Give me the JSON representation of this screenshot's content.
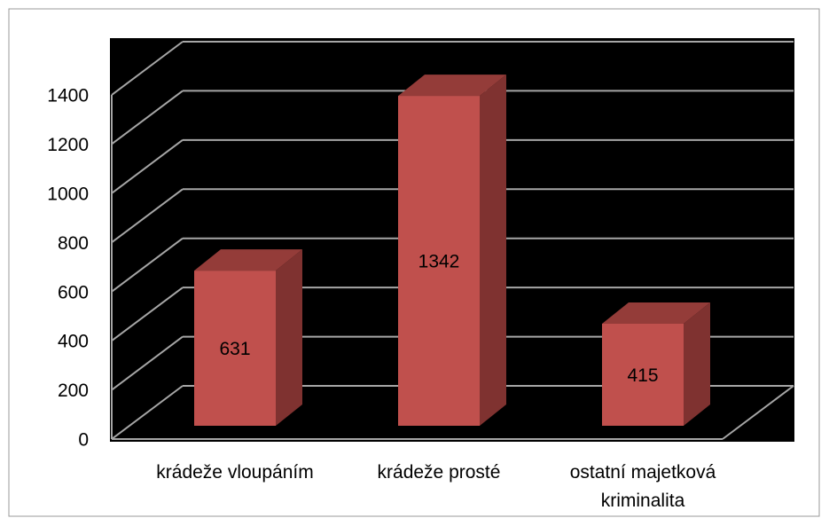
{
  "chart_data": {
    "type": "bar3d",
    "categories": [
      "krádeže vloupáním",
      "krádeže prosté",
      "ostatní majetková kriminalita"
    ],
    "values": [
      631,
      1342,
      415
    ],
    "color": "#c0504d",
    "ylim": [
      0,
      1400
    ],
    "yticks": [
      0,
      200,
      400,
      600,
      800,
      1000,
      1200,
      1400
    ],
    "grid": true
  }
}
